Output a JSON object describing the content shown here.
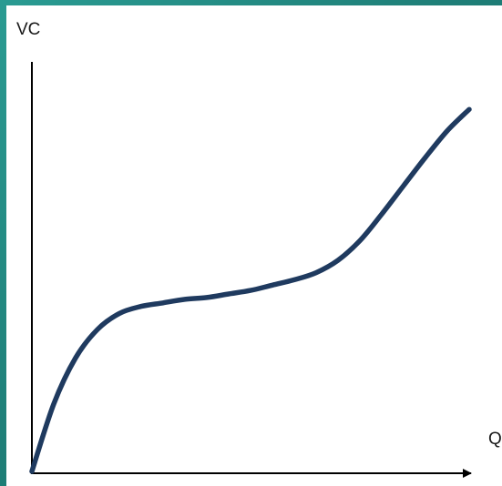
{
  "chart_data": {
    "type": "line",
    "title": "",
    "ylabel": "VC",
    "xlabel": "Q",
    "xlim": [
      0,
      100
    ],
    "ylim": [
      0,
      100
    ],
    "grid": false,
    "legend": "none",
    "series": [
      {
        "x": [
          0,
          5,
          10,
          15,
          20,
          25,
          30,
          35,
          40,
          45,
          50,
          55,
          60,
          65,
          70,
          75,
          80,
          85,
          90,
          95,
          100
        ],
        "y": [
          0,
          19,
          32,
          40,
          44.5,
          46.5,
          47.5,
          48.5,
          49,
          50,
          51,
          52.5,
          54,
          56,
          59.5,
          65,
          72.5,
          80.5,
          88.5,
          96,
          102
        ]
      }
    ]
  },
  "colors": {
    "curve": "#1f3a5f",
    "axis": "#000000",
    "panel": "#ffffff",
    "background": "#22877f"
  }
}
